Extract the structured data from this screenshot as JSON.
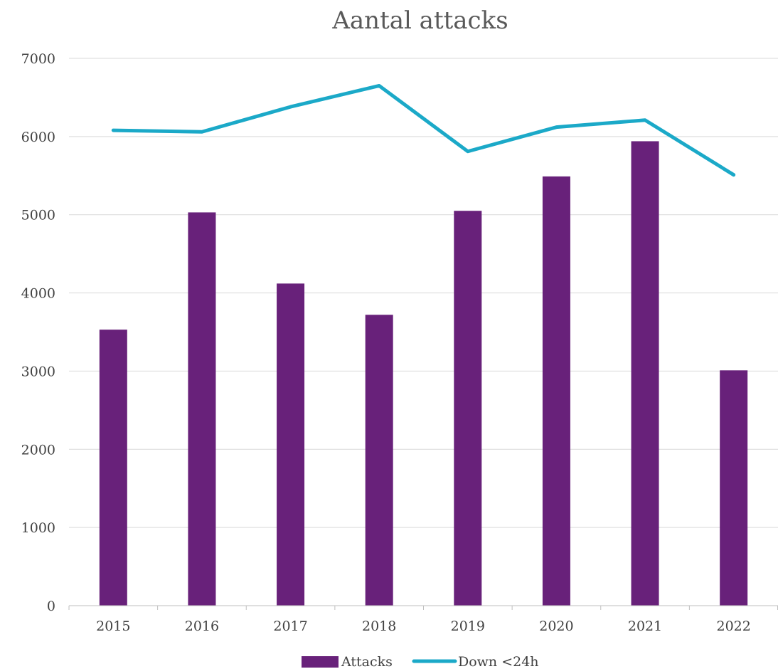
{
  "chart_data": {
    "type": "bar",
    "title": "Aantal attacks",
    "categories": [
      "2015",
      "2016",
      "2017",
      "2018",
      "2019",
      "2020",
      "2021",
      "2022"
    ],
    "ylim": [
      0,
      7000
    ],
    "yticks": [
      "0",
      "1000",
      "2000",
      "3000",
      "4000",
      "5000",
      "6000",
      "7000"
    ],
    "grid": true,
    "legend_position": "bottom",
    "series": [
      {
        "name": "Attacks",
        "type": "bar",
        "color": "#68217a",
        "values": [
          3530,
          5030,
          4120,
          3720,
          5050,
          5490,
          5940,
          3010
        ]
      },
      {
        "name": "Down <24h",
        "type": "line",
        "color": "#1ba9c8",
        "values": [
          6080,
          6060,
          6380,
          6650,
          5810,
          6120,
          6210,
          5510
        ]
      }
    ]
  }
}
